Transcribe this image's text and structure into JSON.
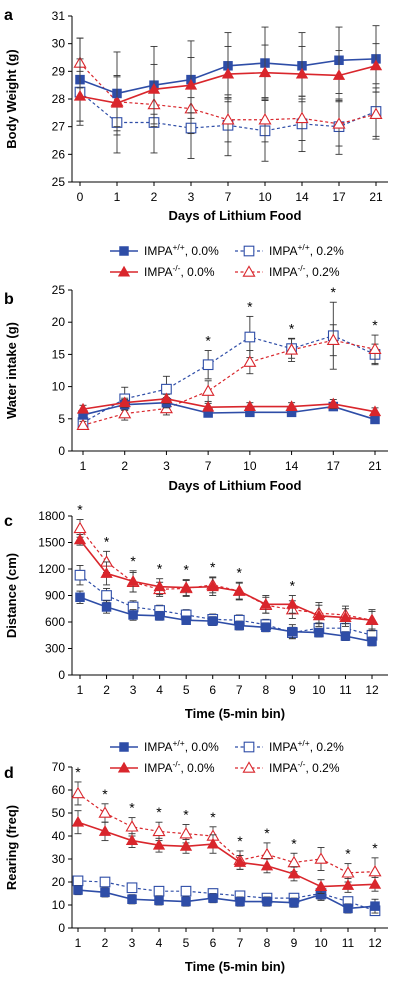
{
  "colors": {
    "wt": "#2E4DA7",
    "ko": "#D9262C",
    "axis": "#000000"
  },
  "legend": {
    "wt_0": {
      "label": "IMPA",
      "sup": "+/+",
      "suffix": ", 0.0%"
    },
    "wt_02": {
      "label": "IMPA",
      "sup": "+/+",
      "suffix": ", 0.2%"
    },
    "ko_0": {
      "label": "IMPA",
      "sup": "-/-",
      "suffix": ", 0.0%"
    },
    "ko_02": {
      "label": "IMPA",
      "sup": "-/-",
      "suffix": ", 0.2%"
    }
  },
  "chart_data": [
    {
      "panel": "a",
      "type": "line",
      "ylabel": "Body Weight (g)",
      "xlabel": "Days of Lithium Food",
      "categories": [
        "0",
        "1",
        "2",
        "3",
        "7",
        "10",
        "14",
        "17",
        "21"
      ],
      "ylim": [
        25,
        31
      ],
      "yticks": [
        25,
        26,
        27,
        28,
        29,
        30,
        31
      ],
      "series": [
        {
          "name": "IMPA+/+, 0.0%",
          "values": [
            28.7,
            28.2,
            28.5,
            28.7,
            29.2,
            29.3,
            29.2,
            29.4,
            29.45
          ],
          "err": [
            1.5,
            1.5,
            1.4,
            1.4,
            1.2,
            1.3,
            1.2,
            1.2,
            1.2
          ]
        },
        {
          "name": "IMPA-/-, 0.0%",
          "values": [
            28.1,
            27.85,
            28.35,
            28.5,
            28.9,
            28.95,
            28.9,
            28.85,
            29.2
          ],
          "err": [
            0.9,
            1.0,
            0.9,
            1.0,
            1.0,
            1.0,
            1.0,
            0.9,
            0.8
          ]
        },
        {
          "name": "IMPA+/+, 0.2%",
          "values": [
            28.25,
            27.15,
            27.15,
            26.95,
            27.05,
            26.85,
            27.1,
            27.0,
            27.55
          ],
          "err": [
            1.2,
            1.1,
            1.1,
            1.1,
            1.1,
            1.1,
            1.0,
            1.0,
            1.0
          ]
        },
        {
          "name": "IMPA-/-, 0.2%",
          "values": [
            29.3,
            27.9,
            27.8,
            27.65,
            27.25,
            27.25,
            27.3,
            27.1,
            27.45
          ],
          "err": [
            0.9,
            0.9,
            0.8,
            0.9,
            0.8,
            0.8,
            0.8,
            0.8,
            0.8
          ]
        }
      ],
      "stars": []
    },
    {
      "panel": "b",
      "type": "line",
      "ylabel": "Water intake (g)",
      "xlabel": "Days of Lithium Food",
      "categories": [
        "1",
        "2",
        "3",
        "7",
        "10",
        "14",
        "17",
        "21"
      ],
      "ylim": [
        0,
        25
      ],
      "yticks": [
        0,
        5,
        10,
        15,
        20,
        25
      ],
      "series": [
        {
          "name": "IMPA+/+, 0.0%",
          "values": [
            5.6,
            7.2,
            7.5,
            5.9,
            6.0,
            6.0,
            6.9,
            4.9
          ],
          "err": [
            0.6,
            0.8,
            0.8,
            0.5,
            0.5,
            0.5,
            0.6,
            0.5
          ]
        },
        {
          "name": "IMPA-/-, 0.0%",
          "values": [
            6.5,
            7.5,
            8.1,
            6.8,
            6.9,
            6.9,
            7.3,
            6.1
          ],
          "err": [
            0.6,
            0.7,
            0.7,
            0.6,
            0.6,
            0.6,
            0.7,
            0.6
          ]
        },
        {
          "name": "IMPA+/+, 0.2%",
          "values": [
            4.4,
            8.1,
            9.6,
            13.4,
            17.7,
            15.9,
            17.9,
            15.0
          ],
          "err": [
            0.8,
            1.8,
            2.0,
            2.2,
            3.2,
            1.5,
            5.2,
            1.6
          ]
        },
        {
          "name": "IMPA-/-, 0.2%",
          "values": [
            4.0,
            5.8,
            6.6,
            9.3,
            13.8,
            15.7,
            17.2,
            15.8
          ],
          "err": [
            0.6,
            1.0,
            1.0,
            1.6,
            1.8,
            1.8,
            2.4,
            2.2
          ]
        }
      ],
      "stars": [
        "7",
        "10",
        "14",
        "17",
        "21"
      ]
    },
    {
      "panel": "c",
      "type": "line",
      "ylabel": "Distance (cm)",
      "xlabel": "Time (5-min bin)",
      "categories": [
        "1",
        "2",
        "3",
        "4",
        "5",
        "6",
        "7",
        "8",
        "9",
        "10",
        "11",
        "12"
      ],
      "ylim": [
        0,
        1800
      ],
      "yticks": [
        0,
        300,
        600,
        900,
        1200,
        1500,
        1800
      ],
      "series": [
        {
          "name": "IMPA+/+, 0.0%",
          "values": [
            880,
            770,
            680,
            670,
            620,
            610,
            560,
            540,
            490,
            480,
            440,
            380
          ],
          "err": [
            70,
            70,
            60,
            50,
            40,
            50,
            50,
            50,
            80,
            50,
            50,
            50
          ]
        },
        {
          "name": "IMPA-/-, 0.0%",
          "values": [
            1530,
            1150,
            1060,
            1000,
            990,
            1000,
            950,
            800,
            800,
            670,
            650,
            620
          ],
          "err": [
            60,
            130,
            120,
            90,
            90,
            100,
            100,
            100,
            100,
            120,
            100,
            100
          ]
        },
        {
          "name": "IMPA+/+, 0.2%",
          "values": [
            1130,
            900,
            770,
            730,
            680,
            630,
            620,
            570,
            480,
            530,
            530,
            450
          ],
          "err": [
            110,
            80,
            70,
            60,
            60,
            60,
            60,
            60,
            60,
            60,
            80,
            70
          ]
        },
        {
          "name": "IMPA-/-, 0.2%",
          "values": [
            1660,
            1280,
            1050,
            970,
            980,
            1020,
            950,
            790,
            740,
            700,
            680,
            620
          ],
          "err": [
            100,
            120,
            110,
            80,
            90,
            90,
            90,
            90,
            100,
            120,
            100,
            120
          ]
        }
      ],
      "stars": [
        "1",
        "2",
        "3",
        "4",
        "5",
        "6",
        "7",
        "9"
      ]
    },
    {
      "panel": "d",
      "type": "line",
      "ylabel": "Rearing (freq)",
      "xlabel": "Time (5-min bin)",
      "categories": [
        "1",
        "2",
        "3",
        "4",
        "5",
        "6",
        "7",
        "8",
        "9",
        "10",
        "11",
        "12"
      ],
      "ylim": [
        0,
        70
      ],
      "yticks": [
        0,
        10,
        20,
        30,
        40,
        50,
        60,
        70
      ],
      "series": [
        {
          "name": "IMPA+/+, 0.0%",
          "values": [
            16.5,
            15.5,
            12.5,
            12,
            11.5,
            13,
            11.5,
            11.5,
            11,
            14.5,
            8.5,
            9.5
          ],
          "err": [
            2,
            2,
            2,
            2,
            2,
            2,
            2,
            2,
            2,
            2,
            2,
            3
          ]
        },
        {
          "name": "IMPA-/-, 0.0%",
          "values": [
            46,
            42,
            38,
            36,
            35.5,
            36.5,
            28.5,
            27,
            23.5,
            18,
            18.5,
            19
          ],
          "err": [
            5,
            4,
            3,
            3,
            3,
            4,
            3,
            3,
            3,
            3,
            3,
            3
          ]
        },
        {
          "name": "IMPA+/+, 0.2%",
          "values": [
            20.5,
            20,
            17.5,
            16,
            16,
            15,
            14,
            13,
            13,
            15,
            11.5,
            7.5
          ],
          "err": [
            2,
            2,
            2,
            2,
            2,
            2,
            2,
            2,
            2,
            3,
            2,
            2
          ]
        },
        {
          "name": "IMPA-/-, 0.2%",
          "values": [
            58.5,
            50,
            44,
            42,
            41,
            40,
            29.5,
            32,
            28.5,
            30,
            24,
            24.5
          ],
          "err": [
            5,
            4,
            4,
            4,
            4,
            4,
            4,
            5,
            4,
            5,
            4,
            6
          ]
        }
      ],
      "stars": [
        "1",
        "2",
        "3",
        "4",
        "5",
        "6",
        "7",
        "8",
        "9",
        "11",
        "12"
      ]
    }
  ]
}
